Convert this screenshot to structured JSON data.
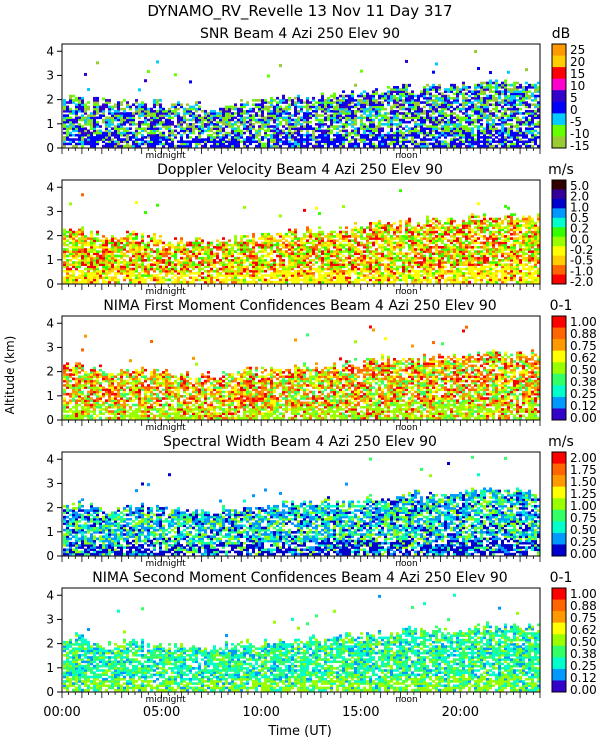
{
  "figure": {
    "title": "DYNAMO_RV_Revelle  13 Nov 11 Day 317",
    "ylabel": "Altitude (km)",
    "xlabel": "Time (UT)",
    "x_tick_labels": [
      "00:00",
      "05:00",
      "10:00",
      "15:00",
      "20:00"
    ],
    "x_ticks_hours": [
      0,
      5,
      10,
      15,
      20
    ],
    "xlim_hours": [
      0,
      24
    ],
    "ylim_km": [
      0,
      4.3
    ],
    "y_ticks": [
      0,
      1,
      2,
      3,
      4
    ],
    "markers": [
      {
        "label": "midnight",
        "hour": 5.2
      },
      {
        "label": "noon",
        "hour": 17.3
      }
    ]
  },
  "chart_data": [
    {
      "type": "heatmap",
      "title": "SNR Beam 4 Azi 250 Elev 90",
      "unit": "dB",
      "colorbar_labels": [
        "25",
        "20",
        "15",
        "10",
        "5",
        "0",
        "-5",
        "-10",
        "-15"
      ],
      "colorbar_colors": [
        "#ff9900",
        "#ffcc00",
        "#ff0000",
        "#ff00cc",
        "#3300cc",
        "#0000ff",
        "#00ccff",
        "#66ff00",
        "#99cc33"
      ],
      "color_range": [
        -15,
        25
      ],
      "cloud_top_km": [
        2.0,
        1.9,
        1.8,
        1.9,
        1.8,
        1.7,
        1.7,
        1.6,
        1.8,
        1.9,
        1.9,
        2.0,
        2.1,
        2.1,
        2.2,
        2.3,
        2.4,
        2.4,
        2.5,
        2.5,
        2.6,
        2.7,
        2.7,
        2.6
      ],
      "cell_colors": [
        "#66ff00",
        "#00ccff",
        "#0000ff",
        "#3300cc",
        "#99cc33"
      ]
    },
    {
      "type": "heatmap",
      "title": "Doppler Velocity Beam 4 Azi 250 Elev 90",
      "unit": "m/s",
      "colorbar_labels": [
        "5.0",
        "2.0",
        "1.0",
        "0.5",
        "0.2",
        "0.0",
        "-0.2",
        "-0.5",
        "-1.0",
        "-2.0"
      ],
      "colorbar_colors": [
        "#330000",
        "#330099",
        "#0000cc",
        "#0099ff",
        "#00ffcc",
        "#33ff00",
        "#99ff00",
        "#ffff00",
        "#ffcc00",
        "#ff6600",
        "#ff0000"
      ],
      "color_range": [
        -2.0,
        5.0
      ],
      "cloud_top_km": [
        2.2,
        2.0,
        1.9,
        2.0,
        1.9,
        1.8,
        1.8,
        1.7,
        1.9,
        2.0,
        2.0,
        2.1,
        2.2,
        2.2,
        2.3,
        2.4,
        2.5,
        2.5,
        2.6,
        2.6,
        2.7,
        2.8,
        2.8,
        2.7
      ],
      "cell_colors": [
        "#ff6600",
        "#ffcc00",
        "#ffff00",
        "#99ff00",
        "#ff0000",
        "#33ff00"
      ]
    },
    {
      "type": "heatmap",
      "title": "NIMA First Moment Confidences Beam 4 Azi 250 Elev 90",
      "unit": "0-1",
      "colorbar_labels": [
        "1.00",
        "0.88",
        "0.75",
        "0.62",
        "0.50",
        "0.38",
        "0.25",
        "0.12",
        "0.00"
      ],
      "colorbar_colors": [
        "#ff0000",
        "#ff6600",
        "#ff9900",
        "#ffff00",
        "#99ff00",
        "#33ff66",
        "#00ffcc",
        "#0099ff",
        "#3300cc"
      ],
      "color_range": [
        0.0,
        1.0
      ],
      "cloud_top_km": [
        2.3,
        2.1,
        2.0,
        2.0,
        1.9,
        1.9,
        1.8,
        1.8,
        1.9,
        2.0,
        2.0,
        2.1,
        2.2,
        2.2,
        2.3,
        2.4,
        2.5,
        2.5,
        2.6,
        2.6,
        2.7,
        2.8,
        2.8,
        2.7
      ],
      "cell_colors": [
        "#ff9900",
        "#ffff00",
        "#99ff00",
        "#ff0000",
        "#ff6600",
        "#33ff66"
      ]
    },
    {
      "type": "heatmap",
      "title": "Spectral Width Beam 4 Azi 250 Elev 90",
      "unit": "m/s",
      "colorbar_labels": [
        "2.00",
        "1.75",
        "1.50",
        "1.25",
        "1.00",
        "0.75",
        "0.50",
        "0.25",
        "0.00"
      ],
      "colorbar_colors": [
        "#ff0000",
        "#ff6600",
        "#ff9900",
        "#ffff00",
        "#99ff00",
        "#33ff66",
        "#00ffcc",
        "#0099ff",
        "#0000cc"
      ],
      "color_range": [
        0.0,
        2.0
      ],
      "cloud_top_km": [
        2.2,
        2.0,
        1.9,
        2.0,
        1.9,
        1.8,
        1.8,
        1.7,
        1.9,
        2.0,
        2.0,
        2.1,
        2.2,
        2.2,
        2.3,
        2.4,
        2.4,
        2.5,
        2.5,
        2.6,
        2.6,
        2.7,
        2.7,
        2.6
      ],
      "cell_colors": [
        "#0099ff",
        "#00ffcc",
        "#0000cc",
        "#33ff66",
        "#99ff00",
        "#0099ff"
      ]
    },
    {
      "type": "heatmap",
      "title": "NIMA Second Moment Confidences Beam 4 Azi 250 Elev 90",
      "unit": "0-1",
      "colorbar_labels": [
        "1.00",
        "0.88",
        "0.75",
        "0.62",
        "0.50",
        "0.38",
        "0.25",
        "0.12",
        "0.00"
      ],
      "colorbar_colors": [
        "#ff0000",
        "#ff6600",
        "#ff9900",
        "#ffff00",
        "#99ff00",
        "#33ff66",
        "#00ffcc",
        "#0099ff",
        "#3300cc"
      ],
      "color_range": [
        0.0,
        1.0
      ],
      "cloud_top_km": [
        2.2,
        2.0,
        1.9,
        2.0,
        1.9,
        1.8,
        1.8,
        1.7,
        1.9,
        2.0,
        2.0,
        2.1,
        2.2,
        2.2,
        2.3,
        2.4,
        2.4,
        2.5,
        2.5,
        2.6,
        2.6,
        2.7,
        2.7,
        2.6
      ],
      "cell_colors": [
        "#33ff66",
        "#00ffcc",
        "#99ff00",
        "#0099ff",
        "#33ff66",
        "#00ffcc"
      ]
    }
  ]
}
